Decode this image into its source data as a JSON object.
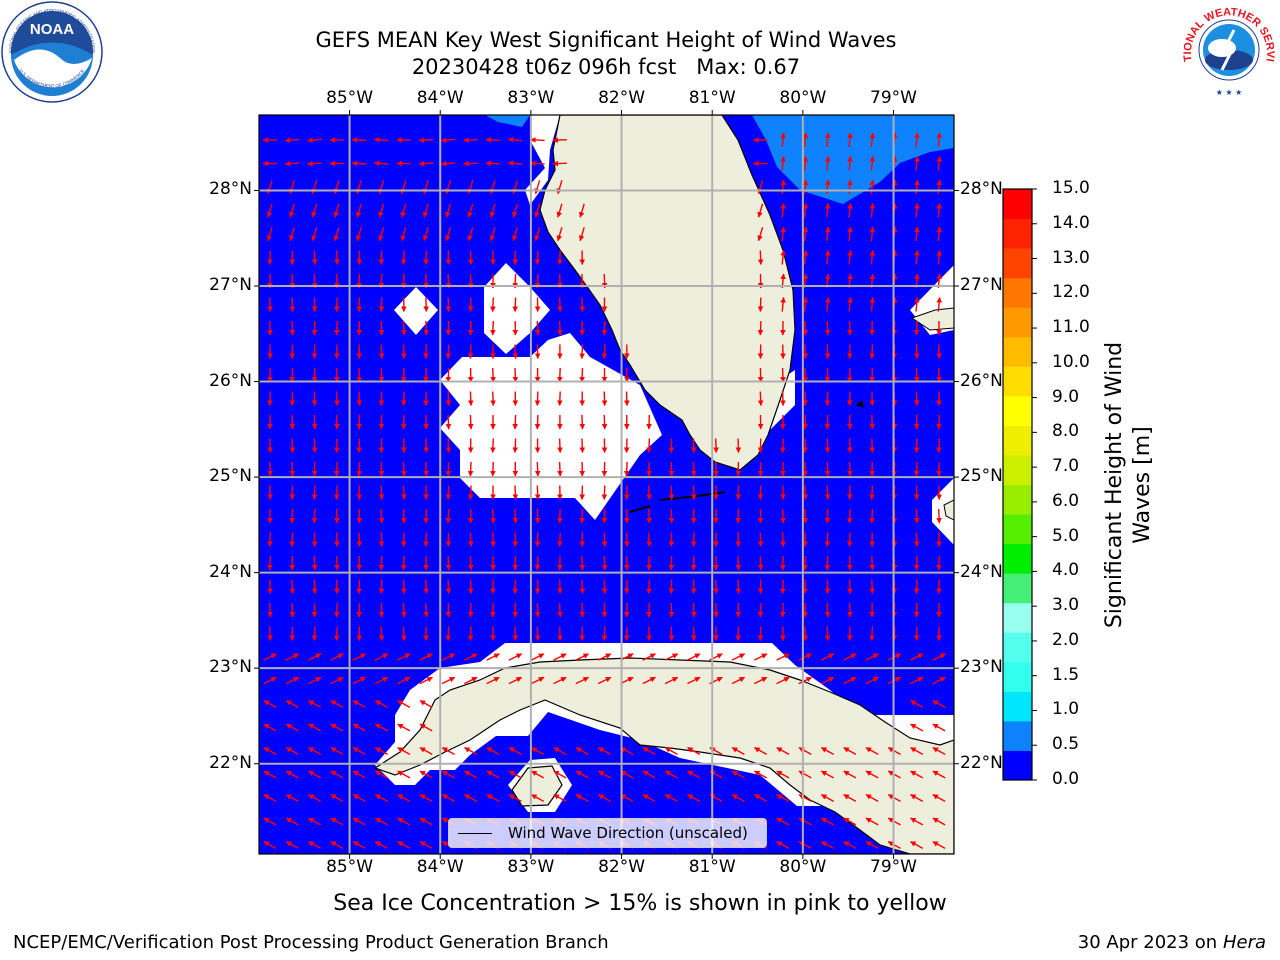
{
  "title": {
    "line1": "GEFS MEAN Key West Significant Height of Wind Waves",
    "line2": "20230428 t06z 096h fcst   Max: 0.67"
  },
  "map": {
    "lon_range": [
      -85.999,
      -78.333
    ],
    "lat_range": [
      21.055,
      28.79
    ],
    "lon_ticks": [
      "85°W",
      "84°W",
      "83°W",
      "82°W",
      "81°W",
      "80°W",
      "79°W"
    ],
    "lat_ticks": [
      "28°N",
      "27°N",
      "26°N",
      "25°N",
      "24°N",
      "23°N",
      "22°N"
    ],
    "legend_label": "Wind Wave Direction (unscaled)",
    "ocean_color": "#0000ff",
    "land_color": "#eeeedd",
    "light_wave_color": "#0f82ff",
    "arrow_color": "#ff0000",
    "grid_color": "#b0b0b0"
  },
  "colorbar": {
    "label_line1": "Significant Height of Wind",
    "label_line2": "Waves [m]",
    "ticks": [
      "15.0",
      "14.0",
      "13.0",
      "12.0",
      "11.0",
      "10.0",
      "9.0",
      "8.0",
      "7.0",
      "6.0",
      "5.0",
      "4.0",
      "3.0",
      "2.0",
      "1.5",
      "1.0",
      "0.5",
      "0.0"
    ],
    "colors": [
      "#0000ff",
      "#0f82ff",
      "#00e6ff",
      "#33ffee",
      "#55ffee",
      "#99ffee",
      "#44ee77",
      "#00ee00",
      "#55ee00",
      "#99ee00",
      "#ccee00",
      "#eeee00",
      "#ffff00",
      "#ffdd00",
      "#ffbb00",
      "#ff9900",
      "#ff7700",
      "#ff4400",
      "#ff2200",
      "#ff0000"
    ]
  },
  "caption": "Sea Ice Concentration > 15% is shown in pink to yellow",
  "footer": {
    "left": "NCEP/EMC/Verification Post Processing Product Generation Branch",
    "right_date": "30 Apr 2023 on ",
    "right_machine": "Hera"
  },
  "logos": {
    "noaa_text": "NOAA",
    "noaa_ring_top": "NATIONAL OCEANIC AND ATMOSPHERIC ADMINISTRATION",
    "noaa_ring_bottom": "U.S. DEPARTMENT OF COMMERCE",
    "nws_ring": "NATIONAL WEATHER SERVICE"
  }
}
